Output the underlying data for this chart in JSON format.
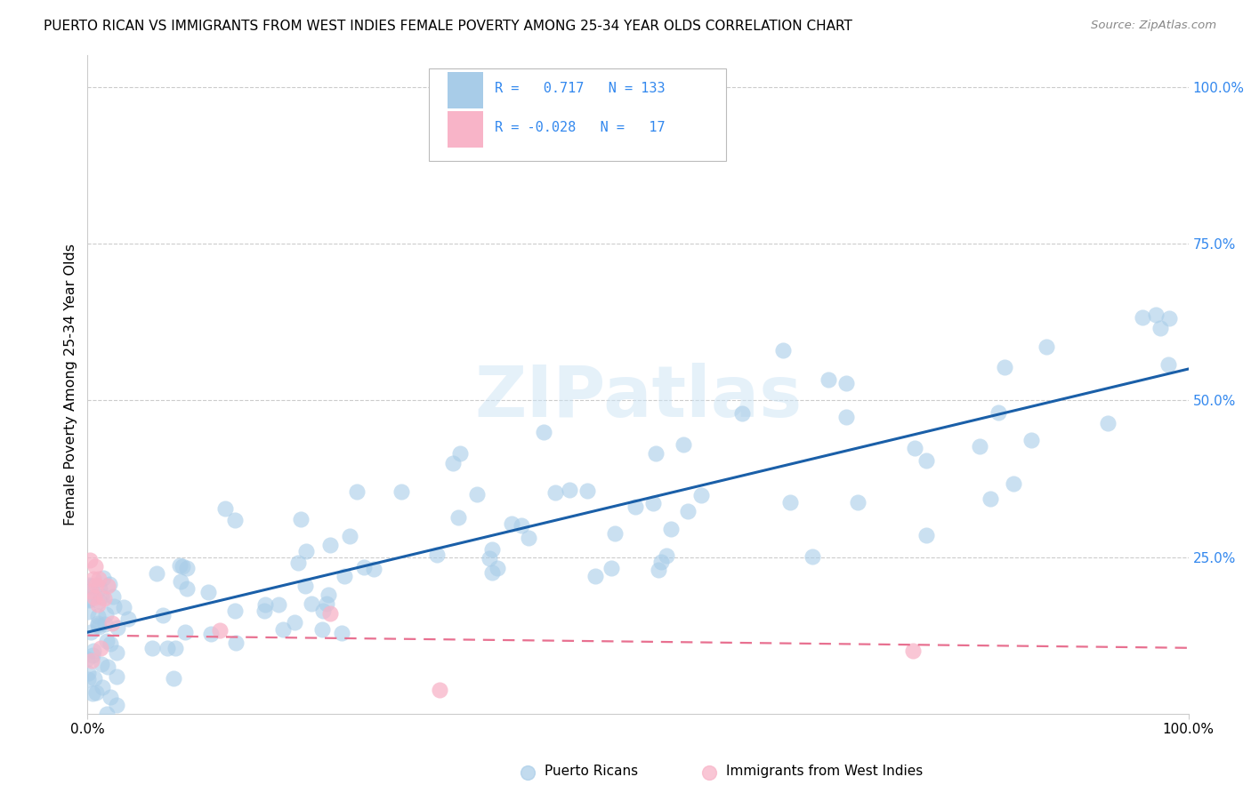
{
  "title": "PUERTO RICAN VS IMMIGRANTS FROM WEST INDIES FEMALE POVERTY AMONG 25-34 YEAR OLDS CORRELATION CHART",
  "source": "Source: ZipAtlas.com",
  "ylabel": "Female Poverty Among 25-34 Year Olds",
  "ylabel_right_ticks": [
    "100.0%",
    "75.0%",
    "50.0%",
    "25.0%"
  ],
  "ylabel_right_vals": [
    1.0,
    0.75,
    0.5,
    0.25
  ],
  "r_blue": 0.717,
  "n_blue": 133,
  "r_pink": -0.028,
  "n_pink": 17,
  "legend_label_blue": "Puerto Ricans",
  "legend_label_pink": "Immigrants from West Indies",
  "blue_color": "#a8cce8",
  "blue_edge_color": "#a8cce8",
  "blue_line_color": "#1a5fa8",
  "pink_color": "#f8b4c8",
  "pink_edge_color": "#f8b4c8",
  "pink_line_color": "#e87090",
  "background_color": "#ffffff",
  "watermark_text": "ZIPatlas",
  "watermark_color": "#ddeeff",
  "grid_color": "#cccccc",
  "blue_intercept": 0.13,
  "blue_slope": 0.42,
  "pink_intercept": 0.125,
  "pink_slope": -0.02,
  "ylim_min": 0.0,
  "ylim_max": 1.05,
  "blue_seed": 77,
  "pink_seed": 42
}
